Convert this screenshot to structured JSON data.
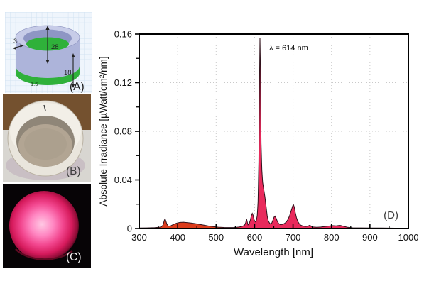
{
  "figure": {
    "panel_a": {
      "label": "(A)",
      "dim_wall_thickness": "3",
      "dim_inner_depth": "28",
      "dim_outer_height": "18",
      "dim_bottom_layer": "1.5"
    },
    "panel_b": {
      "label": "(B)"
    },
    "panel_c": {
      "label": "(C)"
    }
  },
  "chart_data": {
    "type": "area",
    "title": "",
    "xlabel": "Wavelength [nm]",
    "ylabel": "Absolute Irradiance [µWatt/cm²/nm]",
    "xlim": [
      300,
      1000
    ],
    "ylim": [
      0,
      0.16
    ],
    "x_major_ticks": [
      300,
      400,
      500,
      600,
      700,
      800,
      900,
      1000
    ],
    "x_minor_ticks": [
      350,
      450,
      550,
      650,
      750,
      850,
      950
    ],
    "y_major_ticks": [
      0,
      0.04,
      0.08,
      0.12,
      0.16
    ],
    "y_tick_labels": [
      "0",
      "0.04",
      "0.08",
      "0.12",
      "0.16"
    ],
    "y_minor_ticks": [
      0.02,
      0.06,
      0.1,
      0.14
    ],
    "grid": "dotted gridlines at major ticks, full box frame, ticks in on x, out on y",
    "legend": "none",
    "panel_label": "(D)",
    "annotation": {
      "text": "λ = 614 nm",
      "peak_x": 614,
      "peak_y": 0.157
    },
    "colors": {
      "fill_uv_region": "#dc3c1c",
      "fill_red_region": "#e92a5c",
      "outline": "#30121c",
      "grid": "#c9c9c9",
      "axis": "#000000"
    },
    "series": [
      {
        "name": "emission-spectrum",
        "points": [
          [
            300,
            0.0004
          ],
          [
            320,
            0.0005
          ],
          [
            340,
            0.0007
          ],
          [
            352,
            0.001
          ],
          [
            358,
            0.0015
          ],
          [
            362,
            0.003
          ],
          [
            365,
            0.0065
          ],
          [
            367,
            0.008
          ],
          [
            369,
            0.0065
          ],
          [
            372,
            0.0035
          ],
          [
            376,
            0.002
          ],
          [
            382,
            0.0022
          ],
          [
            390,
            0.0035
          ],
          [
            398,
            0.0045
          ],
          [
            406,
            0.005
          ],
          [
            415,
            0.0052
          ],
          [
            424,
            0.0049
          ],
          [
            435,
            0.0045
          ],
          [
            446,
            0.004
          ],
          [
            458,
            0.0033
          ],
          [
            470,
            0.0027
          ],
          [
            482,
            0.002
          ],
          [
            494,
            0.0015
          ],
          [
            506,
            0.0011
          ],
          [
            520,
            0.0009
          ],
          [
            534,
            0.0008
          ],
          [
            548,
            0.0009
          ],
          [
            560,
            0.0012
          ],
          [
            568,
            0.0018
          ],
          [
            574,
            0.0028
          ],
          [
            577,
            0.005
          ],
          [
            579,
            0.008
          ],
          [
            581,
            0.0055
          ],
          [
            583,
            0.003
          ],
          [
            586,
            0.004
          ],
          [
            589,
            0.007
          ],
          [
            592,
            0.011
          ],
          [
            594,
            0.0125
          ],
          [
            596,
            0.011
          ],
          [
            599,
            0.007
          ],
          [
            602,
            0.0055
          ],
          [
            605,
            0.007
          ],
          [
            607,
            0.011
          ],
          [
            609,
            0.022
          ],
          [
            611,
            0.055
          ],
          [
            612,
            0.09
          ],
          [
            613,
            0.13
          ],
          [
            614,
            0.157
          ],
          [
            615,
            0.135
          ],
          [
            616,
            0.1
          ],
          [
            617,
            0.07
          ],
          [
            619,
            0.048
          ],
          [
            621,
            0.038
          ],
          [
            624,
            0.032
          ],
          [
            627,
            0.026
          ],
          [
            630,
            0.018
          ],
          [
            633,
            0.01
          ],
          [
            636,
            0.006
          ],
          [
            640,
            0.004
          ],
          [
            644,
            0.004
          ],
          [
            648,
            0.007
          ],
          [
            651,
            0.0095
          ],
          [
            653,
            0.0102
          ],
          [
            656,
            0.0085
          ],
          [
            659,
            0.006
          ],
          [
            663,
            0.004
          ],
          [
            667,
            0.0032
          ],
          [
            672,
            0.0033
          ],
          [
            677,
            0.004
          ],
          [
            682,
            0.0052
          ],
          [
            687,
            0.0075
          ],
          [
            691,
            0.0105
          ],
          [
            695,
            0.0145
          ],
          [
            699,
            0.0185
          ],
          [
            701,
            0.0198
          ],
          [
            703,
            0.018
          ],
          [
            706,
            0.013
          ],
          [
            709,
            0.009
          ],
          [
            712,
            0.006
          ],
          [
            716,
            0.004
          ],
          [
            720,
            0.0028
          ],
          [
            726,
            0.002
          ],
          [
            733,
            0.0017
          ],
          [
            739,
            0.002
          ],
          [
            744,
            0.0028
          ],
          [
            747,
            0.0018
          ],
          [
            753,
            0.0012
          ],
          [
            762,
            0.001
          ],
          [
            772,
            0.0012
          ],
          [
            782,
            0.0016
          ],
          [
            792,
            0.002
          ],
          [
            802,
            0.0024
          ],
          [
            812,
            0.0022
          ],
          [
            822,
            0.0026
          ],
          [
            832,
            0.0018
          ],
          [
            842,
            0.001
          ],
          [
            855,
            0.0006
          ],
          [
            875,
            0.0005
          ],
          [
            900,
            0.0004
          ],
          [
            930,
            0.0004
          ],
          [
            965,
            0.0003
          ],
          [
            1000,
            0.0003
          ]
        ]
      }
    ]
  }
}
